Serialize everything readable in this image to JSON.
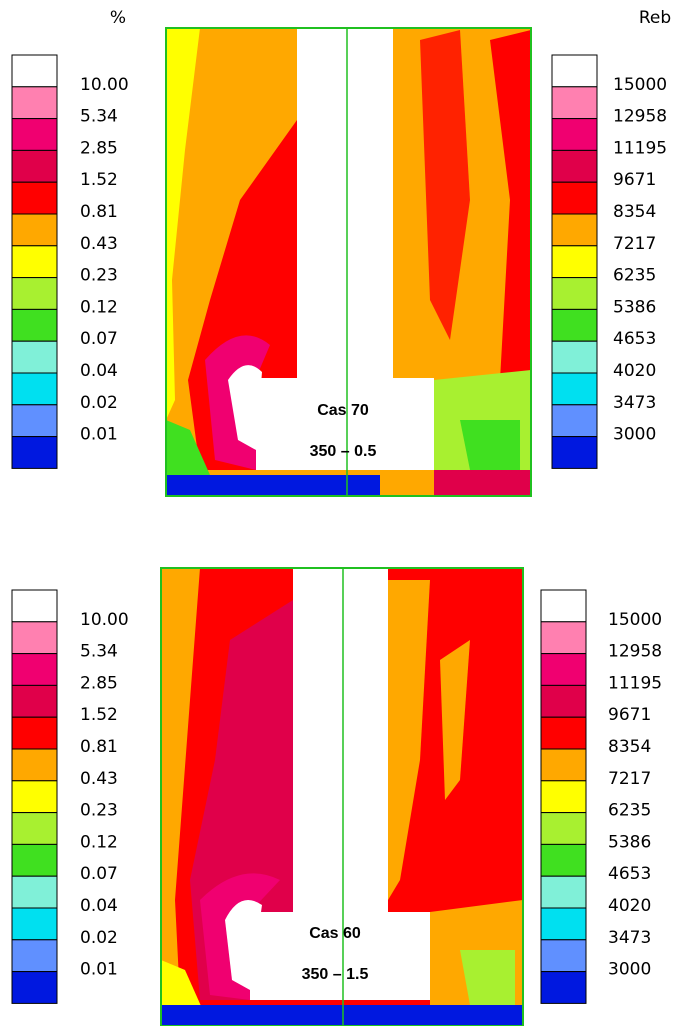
{
  "legend_colors": [
    "#ffffff",
    "#ff80b0",
    "#f00070",
    "#e0004a",
    "#ff0000",
    "#ffa800",
    "#ffff00",
    "#a8f030",
    "#40e020",
    "#80f0d8",
    "#00e0f0",
    "#6090ff",
    "#0018e0"
  ],
  "panels": [
    {
      "case": "Cas 70",
      "condition": "350 – 0.5",
      "left_legend": {
        "unit": "%",
        "labels": [
          "10.00",
          "5.34",
          "2.85",
          "1.52",
          "0.81",
          "0.43",
          "0.23",
          "0.12",
          "0.07",
          "0.04",
          "0.02",
          "0.01"
        ]
      },
      "right_legend": {
        "unit": "Reb",
        "labels": [
          "15000",
          "12958",
          "11195",
          "9671",
          "8354",
          "7217",
          "6235",
          "5386",
          "4653",
          "4020",
          "3473",
          "3000"
        ]
      }
    },
    {
      "case": "Cas 60",
      "condition": "350 – 1.5",
      "left_legend": {
        "labels": [
          "10.00",
          "5.34",
          "2.85",
          "1.52",
          "0.81",
          "0.43",
          "0.23",
          "0.12",
          "0.07",
          "0.04",
          "0.02",
          "0.01"
        ]
      },
      "right_legend": {
        "labels": [
          "15000",
          "12958",
          "11195",
          "9671",
          "8354",
          "7217",
          "6235",
          "5386",
          "4653",
          "4020",
          "3473",
          "3000"
        ]
      }
    }
  ]
}
